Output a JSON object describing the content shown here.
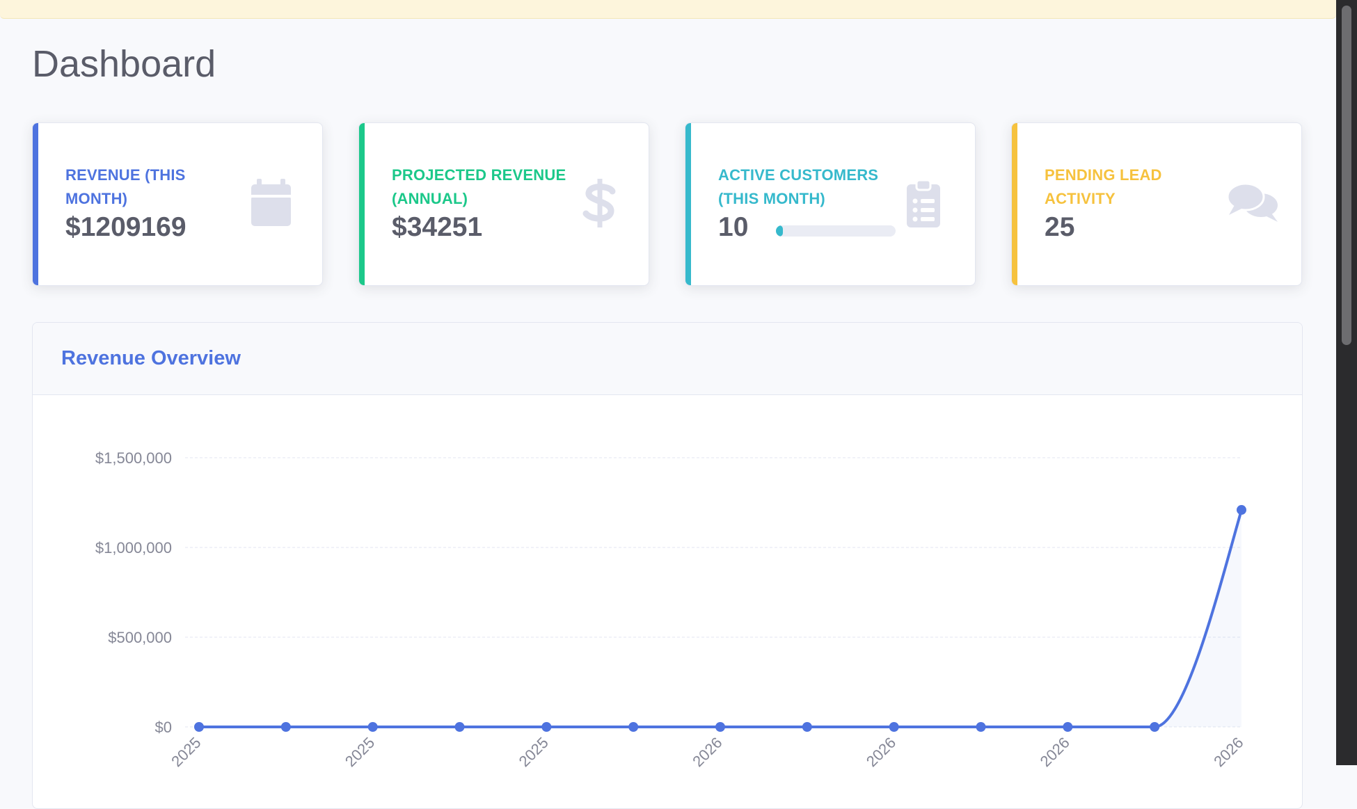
{
  "page": {
    "title": "Dashboard"
  },
  "cards": [
    {
      "label": "Revenue (This Month)",
      "value": "$1209169",
      "color": "#4e73df",
      "icon": "calendar-icon"
    },
    {
      "label": "Projected Revenue (Annual)",
      "value": "$34251",
      "color": "#1cc88a",
      "icon": "dollar-icon"
    },
    {
      "label": "Active Customers (This Month)",
      "value": "10",
      "color": "#36b9cc",
      "icon": "clipboard-list-icon",
      "progress_percent": 6
    },
    {
      "label": "Pending Lead Activity",
      "value": "25",
      "color": "#f6c23e",
      "icon": "comments-icon"
    }
  ],
  "chart_section": {
    "title": "Revenue Overview"
  },
  "chart_data": {
    "type": "area",
    "title": "",
    "xlabel": "",
    "ylabel": "",
    "ylim": [
      0,
      1500000
    ],
    "yticks": [
      "$0",
      "$500,000",
      "$1,000,000",
      "$1,500,000"
    ],
    "ytick_values": [
      0,
      500000,
      1000000,
      1500000
    ],
    "xtick_labels": [
      "2025",
      "2025",
      "2025",
      "2026",
      "2026",
      "2026",
      "2026"
    ],
    "grid": true,
    "series": [
      {
        "values": [
          0,
          0,
          0,
          0,
          0,
          0,
          0,
          0,
          0,
          0,
          0,
          0,
          1209169
        ],
        "color": "#4e73df"
      }
    ]
  }
}
